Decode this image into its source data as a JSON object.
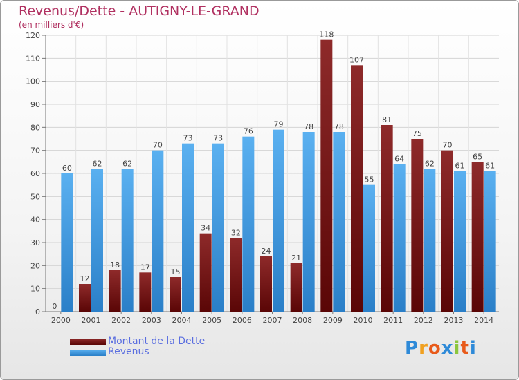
{
  "chart_data": {
    "type": "bar",
    "title": "Revenus/Dette - AUTIGNY-LE-GRAND",
    "subtitle": "(en milliers d'€)",
    "categories": [
      "2000",
      "2001",
      "2002",
      "2003",
      "2004",
      "2005",
      "2006",
      "2007",
      "2008",
      "2009",
      "2010",
      "2011",
      "2012",
      "2013",
      "2014"
    ],
    "series": [
      {
        "name": "Montant de la Dette",
        "color": "#7a1a1a",
        "values": [
          0,
          12,
          18,
          17,
          15,
          34,
          32,
          24,
          21,
          118,
          107,
          81,
          75,
          70,
          65
        ]
      },
      {
        "name": "Revenus",
        "color": "#3d9ae6",
        "values": [
          60,
          62,
          62,
          70,
          73,
          73,
          76,
          79,
          78,
          78,
          55,
          64,
          62,
          61,
          61
        ]
      }
    ],
    "ylim": [
      0,
      120
    ],
    "yticks": [
      0,
      10,
      20,
      30,
      40,
      50,
      60,
      70,
      80,
      90,
      100,
      110,
      120
    ],
    "grid": true,
    "legend": "bottom-left"
  },
  "legend": {
    "items": [
      {
        "label": "Montant de la Dette",
        "color": "#6b1010"
      },
      {
        "label": "Revenus",
        "color": "#3d9ae6"
      }
    ]
  },
  "logo": {
    "text": "Proxiti",
    "letters": [
      "P",
      "r",
      "o",
      "x",
      "i",
      "t",
      "i"
    ],
    "colors": [
      "#2e8ad8",
      "#f0a020",
      "#e85a1a",
      "#2e8ad8",
      "#8cc63e",
      "#e85a1a",
      "#2e8ad8"
    ]
  }
}
